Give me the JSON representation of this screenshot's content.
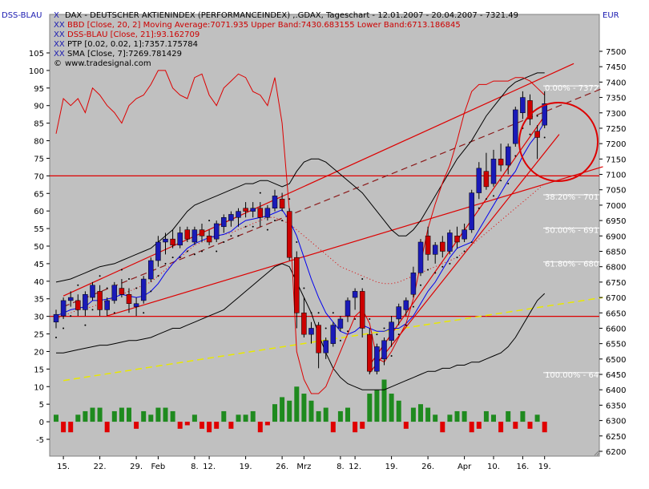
{
  "corner_left": "DSS-BLAU",
  "corner_right": "EUR",
  "legend": [
    {
      "mark": "X",
      "text": "DAX  - DEUTSCHER AKTIENINDEX (PERFORMANCEINDEX) ,.GDAX, Tageschart - 12.01.2007 - 20.04.2007 - 7321.49",
      "color": "#000000"
    },
    {
      "mark": "XX",
      "text": "BBD [Close, 20, 2] Moving Average:7071.935 Upper Band:7430.683155 Lower Band:6713.186845",
      "color": "#cc0000"
    },
    {
      "mark": "XX",
      "text": "DSS-BLAU [Close, 21]:93.162709",
      "color": "#cc0000"
    },
    {
      "mark": "XX",
      "text": "PTP [0.02, 0.02, 1]:7357.175784",
      "color": "#000000"
    },
    {
      "mark": "XX",
      "text": "SMA [Close, 7]:7269.781429",
      "color": "#000000"
    },
    {
      "mark": "©",
      "text": "www.tradesignal.com",
      "color": "#000000"
    }
  ],
  "colors": {
    "up": "#1a1ab8",
    "down": "#cc0000",
    "bg": "#c0c0c0",
    "vol_up": "#1f8a1f",
    "vol_down": "#e00000",
    "sma": "#0000ee",
    "bands": "#000000",
    "osc": "#dd0000",
    "lines": "#dd0000",
    "dash": "#8b1a1a",
    "trend_yellow": "#e8e800"
  },
  "chart_data": {
    "type": "candlestick",
    "title": "DAX  - DEUTSCHER AKTIENINDEX (PERFORMANCEINDEX) ,.GDAX, Tageschart - 12.01.2007 - 20.04.2007 - 7321.49",
    "right_axis": {
      "label": "EUR",
      "range": [
        6200,
        7500
      ],
      "ticks": [
        6200,
        6250,
        6300,
        6350,
        6400,
        6450,
        6500,
        6550,
        6600,
        6650,
        6700,
        6750,
        6800,
        6850,
        6900,
        6950,
        7000,
        7050,
        7100,
        7150,
        7200,
        7250,
        7300,
        7350,
        7400,
        7450,
        7500
      ]
    },
    "left_axis": {
      "label": "DSS-BLAU",
      "range": [
        -5,
        105
      ],
      "ticks": [
        -5,
        0,
        5,
        10,
        15,
        20,
        25,
        30,
        35,
        40,
        45,
        50,
        55,
        60,
        65,
        70,
        75,
        80,
        85,
        90,
        95,
        100,
        105
      ]
    },
    "x_tick_labels": [
      {
        "label": "15.",
        "idx": 1
      },
      {
        "label": "22.",
        "idx": 6
      },
      {
        "label": "29.",
        "idx": 11
      },
      {
        "label": "Feb",
        "idx": 14
      },
      {
        "label": "8.",
        "idx": 19
      },
      {
        "label": "12.",
        "idx": 21
      },
      {
        "label": "19.",
        "idx": 26
      },
      {
        "label": "26.",
        "idx": 31
      },
      {
        "label": "Mrz",
        "idx": 34
      },
      {
        "label": "8.",
        "idx": 39
      },
      {
        "label": "12.",
        "idx": 41
      },
      {
        "label": "19.",
        "idx": 46
      },
      {
        "label": "26.",
        "idx": 51
      },
      {
        "label": "Apr",
        "idx": 56
      },
      {
        "label": "10.",
        "idx": 60
      },
      {
        "label": "16.",
        "idx": 64
      },
      {
        "label": "19.",
        "idx": 67
      }
    ],
    "candles": [
      [
        6620,
        6660,
        6600,
        6645
      ],
      [
        6640,
        6700,
        6630,
        6690
      ],
      [
        6690,
        6720,
        6670,
        6700
      ],
      [
        6690,
        6710,
        6640,
        6660
      ],
      [
        6660,
        6720,
        6640,
        6710
      ],
      [
        6700,
        6750,
        6690,
        6740
      ],
      [
        6720,
        6740,
        6640,
        6660
      ],
      [
        6660,
        6700,
        6640,
        6690
      ],
      [
        6690,
        6750,
        6680,
        6740
      ],
      [
        6730,
        6760,
        6700,
        6710
      ],
      [
        6710,
        6730,
        6650,
        6680
      ],
      [
        6670,
        6700,
        6640,
        6680
      ],
      [
        6690,
        6770,
        6680,
        6760
      ],
      [
        6760,
        6830,
        6750,
        6820
      ],
      [
        6820,
        6900,
        6800,
        6880
      ],
      [
        6880,
        6910,
        6840,
        6890
      ],
      [
        6890,
        6920,
        6860,
        6870
      ],
      [
        6870,
        6930,
        6860,
        6910
      ],
      [
        6920,
        6930,
        6880,
        6890
      ],
      [
        6880,
        6930,
        6870,
        6920
      ],
      [
        6920,
        6940,
        6880,
        6900
      ],
      [
        6900,
        6920,
        6870,
        6880
      ],
      [
        6890,
        6950,
        6880,
        6940
      ],
      [
        6930,
        6970,
        6910,
        6960
      ],
      [
        6950,
        6980,
        6930,
        6970
      ],
      [
        6960,
        6990,
        6930,
        6980
      ],
      [
        6990,
        7010,
        6960,
        6980
      ],
      [
        6980,
        7010,
        6960,
        6990
      ],
      [
        6990,
        7010,
        6930,
        6960
      ],
      [
        6960,
        7000,
        6950,
        6990
      ],
      [
        6990,
        7050,
        6980,
        7030
      ],
      [
        7020,
        7040,
        6980,
        6990
      ],
      [
        6980,
        6990,
        6820,
        6830
      ],
      [
        6830,
        6850,
        6600,
        6650
      ],
      [
        6650,
        6700,
        6570,
        6580
      ],
      [
        6580,
        6620,
        6550,
        6600
      ],
      [
        6610,
        6620,
        6470,
        6520
      ],
      [
        6520,
        6570,
        6500,
        6560
      ],
      [
        6550,
        6620,
        6540,
        6610
      ],
      [
        6600,
        6640,
        6590,
        6630
      ],
      [
        6640,
        6700,
        6620,
        6690
      ],
      [
        6700,
        6730,
        6660,
        6720
      ],
      [
        6720,
        6730,
        6570,
        6600
      ],
      [
        6580,
        6600,
        6450,
        6460
      ],
      [
        6460,
        6550,
        6450,
        6540
      ],
      [
        6500,
        6570,
        6480,
        6560
      ],
      [
        6560,
        6640,
        6540,
        6620
      ],
      [
        6630,
        6680,
        6610,
        6670
      ],
      [
        6660,
        6700,
        6640,
        6690
      ],
      [
        6710,
        6800,
        6700,
        6780
      ],
      [
        6780,
        6890,
        6770,
        6880
      ],
      [
        6900,
        6930,
        6820,
        6840
      ],
      [
        6840,
        6880,
        6810,
        6870
      ],
      [
        6880,
        6900,
        6830,
        6850
      ],
      [
        6850,
        6920,
        6840,
        6910
      ],
      [
        6900,
        6930,
        6860,
        6880
      ],
      [
        6890,
        6940,
        6880,
        6920
      ],
      [
        6920,
        7050,
        6910,
        7040
      ],
      [
        7040,
        7140,
        7020,
        7120
      ],
      [
        7110,
        7170,
        7050,
        7060
      ],
      [
        7070,
        7180,
        7060,
        7150
      ],
      [
        7150,
        7200,
        7110,
        7130
      ],
      [
        7130,
        7200,
        7100,
        7190
      ],
      [
        7200,
        7320,
        7190,
        7310
      ],
      [
        7300,
        7370,
        7280,
        7350
      ],
      [
        7340,
        7360,
        7260,
        7280
      ],
      [
        7240,
        7260,
        7150,
        7220
      ],
      [
        7260,
        7370,
        7250,
        7330
      ]
    ],
    "sma_7": [
      6640,
      6650,
      6660,
      6665,
      6670,
      6690,
      6690,
      6695,
      6700,
      6710,
      6705,
      6700,
      6705,
      6720,
      6745,
      6780,
      6810,
      6835,
      6860,
      6875,
      6885,
      6895,
      6900,
      6905,
      6915,
      6935,
      6950,
      6955,
      6960,
      6965,
      6975,
      6985,
      6950,
      6900,
      6830,
      6760,
      6700,
      6650,
      6620,
      6590,
      6580,
      6590,
      6610,
      6600,
      6590,
      6590,
      6600,
      6600,
      6615,
      6640,
      6680,
      6720,
      6750,
      6790,
      6830,
      6860,
      6870,
      6880,
      6920,
      6960,
      7000,
      7040,
      7080,
      7110,
      7160,
      7200,
      7230,
      7270
    ],
    "bb_upper": [
      6750,
      6755,
      6760,
      6770,
      6780,
      6790,
      6800,
      6805,
      6810,
      6820,
      6830,
      6840,
      6850,
      6860,
      6880,
      6900,
      6920,
      6950,
      6980,
      7000,
      7010,
      7020,
      7030,
      7040,
      7050,
      7060,
      7070,
      7070,
      7080,
      7080,
      7070,
      7060,
      7070,
      7110,
      7140,
      7150,
      7150,
      7140,
      7120,
      7100,
      7080,
      7060,
      7040,
      7010,
      6980,
      6950,
      6920,
      6900,
      6900,
      6920,
      6950,
      6990,
      7030,
      7070,
      7110,
      7150,
      7180,
      7210,
      7250,
      7290,
      7320,
      7350,
      7380,
      7400,
      7410,
      7420,
      7430,
      7430
    ],
    "bb_lower": [
      6520,
      6520,
      6525,
      6530,
      6535,
      6540,
      6545,
      6545,
      6550,
      6555,
      6560,
      6560,
      6565,
      6570,
      6580,
      6590,
      6600,
      6600,
      6610,
      6620,
      6630,
      6640,
      6650,
      6660,
      6680,
      6700,
      6720,
      6740,
      6760,
      6780,
      6800,
      6810,
      6800,
      6750,
      6700,
      6650,
      6580,
      6520,
      6470,
      6440,
      6420,
      6410,
      6400,
      6400,
      6400,
      6400,
      6410,
      6420,
      6430,
      6440,
      6450,
      6460,
      6460,
      6470,
      6470,
      6480,
      6480,
      6490,
      6490,
      6500,
      6510,
      6520,
      6540,
      6570,
      6610,
      6650,
      6690,
      6713
    ],
    "bb_mid": [
      6630,
      6640,
      6650,
      6660,
      6665,
      6670,
      6680,
      6690,
      6700,
      6710,
      6720,
      6730,
      6740,
      6750,
      6770,
      6790,
      6810,
      6830,
      6850,
      6870,
      6880,
      6890,
      6900,
      6905,
      6910,
      6920,
      6930,
      6940,
      6950,
      6960,
      6960,
      6950,
      6940,
      6920,
      6900,
      6880,
      6860,
      6840,
      6820,
      6800,
      6790,
      6780,
      6770,
      6760,
      6750,
      6745,
      6745,
      6750,
      6760,
      6770,
      6780,
      6790,
      6800,
      6810,
      6820,
      6830,
      6850,
      6870,
      6890,
      6910,
      6930,
      6950,
      6970,
      6990,
      7010,
      7030,
      7050,
      7071
    ],
    "dss_blau": [
      82,
      92,
      90,
      92,
      88,
      95,
      93,
      90,
      88,
      85,
      90,
      92,
      93,
      96,
      100,
      100,
      95,
      93,
      92,
      98,
      99,
      93,
      90,
      95,
      97,
      99,
      98,
      94,
      93,
      90,
      98,
      85,
      60,
      20,
      12,
      8,
      8,
      10,
      15,
      20,
      25,
      30,
      32,
      28,
      18,
      17,
      20,
      24,
      28,
      35,
      45,
      55,
      62,
      68,
      73,
      80,
      88,
      94,
      96,
      96,
      97,
      97,
      97,
      98,
      98,
      97,
      95,
      93
    ],
    "volume_osc": [
      2,
      -3,
      -3,
      2,
      3,
      4,
      4,
      -3,
      3,
      4,
      4,
      -2,
      3,
      2,
      4,
      4,
      3,
      -2,
      -1,
      2,
      -2,
      -3,
      -2,
      3,
      -2,
      2,
      2,
      3,
      -3,
      -1,
      5,
      7,
      6,
      10,
      8,
      6,
      3,
      4,
      -3,
      3,
      4,
      -3,
      -2,
      8,
      9,
      12,
      8,
      6,
      -2,
      4,
      5,
      4,
      2,
      -3,
      2,
      3,
      3,
      -3,
      -2,
      3,
      2,
      -3,
      3,
      -2,
      3,
      -2,
      2,
      -3
    ]
  }
}
